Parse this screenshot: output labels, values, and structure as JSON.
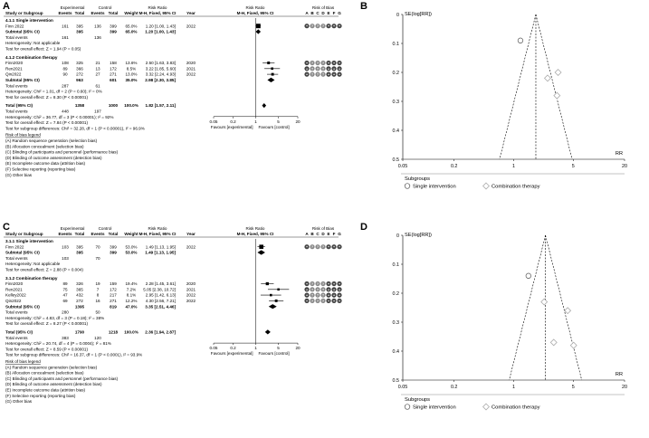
{
  "panels": {
    "A": "A",
    "B": "B",
    "C": "C",
    "D": "D"
  },
  "forest_headers": {
    "experimental": "Experimental",
    "control": "Control",
    "risk_ratio": "Risk Ratio",
    "risk_of_bias": "Risk of Bias",
    "study_or_subgroup": "Study or Subgroup",
    "events": "Events",
    "total": "Total",
    "weight": "Weight",
    "rr_method": "M-H, Fixed, 95% CI",
    "year": "Year",
    "bias_letters": [
      "A",
      "B",
      "C",
      "D",
      "E",
      "F",
      "G"
    ]
  },
  "forest_axis": {
    "ticks": [
      "0.05",
      "0.2",
      "1",
      "5",
      "20"
    ],
    "favours_left": "Favours [experimental]",
    "favours_right": "Favours [control]"
  },
  "legend": {
    "title": "Risk of bias legend",
    "items": [
      "(A) Random sequence generation (selection bias)",
      "(B) Allocation concealment (selection bias)",
      "(C) Blinding of participants and personnel (performance bias)",
      "(D) Blinding of outcome assessment (detection bias)",
      "(E) Incomplete outcome data (attrition bias)",
      "(F) Selective reporting (reporting bias)",
      "(G) Other bias"
    ]
  },
  "chart_data": [
    {
      "type": "table",
      "panel": "A",
      "subgroups": [
        {
          "title": "4.1.1 Single intervention",
          "studies": [
            {
              "name": "Finn 2022",
              "e_events": 161,
              "e_total": 395,
              "c_events": 136,
              "c_total": 399,
              "weight": "65.0%",
              "rr": 1.2,
              "lo": 1.0,
              "hi": 1.43,
              "ci_text": "1.20 [1.00, 1.43]",
              "year": "2022",
              "bias": [
                "+",
                "?",
                "?",
                "?",
                "+",
                "+",
                "+"
              ]
            }
          ],
          "subtotal": {
            "label": "Subtotal (95% CI)",
            "e_total": 395,
            "c_total": 399,
            "weight": "65.0%",
            "rr": 1.2,
            "lo": 1.0,
            "hi": 1.43,
            "ci_text": "1.20 [1.00, 1.43]"
          },
          "total_events": {
            "label": "Total events",
            "e": 161,
            "c": 136
          },
          "notes": [
            "Heterogeneity: Not applicable",
            "Test for overall effect: Z = 1.94 (P = 0.05)"
          ]
        },
        {
          "title": "4.1.2 Combination therapy",
          "studies": [
            {
              "name": "Finn2020",
              "e_events": 108,
              "e_total": 325,
              "c_events": 21,
              "c_total": 158,
              "weight": "13.6%",
              "rr": 2.5,
              "lo": 1.63,
              "hi": 3.83,
              "ci_text": "2.50 [1.63, 3.83]",
              "year": "2020",
              "bias": [
                "+",
                "?",
                "?",
                "?",
                "+",
                "+",
                "+"
              ]
            },
            {
              "name": "Ren2021",
              "e_events": 89,
              "e_total": 366,
              "c_events": 13,
              "c_total": 172,
              "weight": "8.5%",
              "rr": 3.22,
              "lo": 1.85,
              "hi": 5.6,
              "ci_text": "3.22 [1.85, 5.60]",
              "year": "2021",
              "bias": [
                "+",
                "?",
                "?",
                "?",
                "+",
                "+",
                "+"
              ]
            },
            {
              "name": "Qin2022",
              "e_events": 90,
              "e_total": 272,
              "c_events": 27,
              "c_total": 271,
              "weight": "13.0%",
              "rr": 3.32,
              "lo": 2.24,
              "hi": 4.93,
              "ci_text": "3.32 [2.24, 4.93]",
              "year": "2022",
              "bias": [
                "+",
                "?",
                "?",
                "?",
                "+",
                "+",
                "+"
              ]
            }
          ],
          "subtotal": {
            "label": "Subtotal (95% CI)",
            "e_total": 963,
            "c_total": 601,
            "weight": "35.0%",
            "rr": 2.98,
            "lo": 2.3,
            "hi": 3.85,
            "ci_text": "2.98 [2.30, 3.85]"
          },
          "total_events": {
            "label": "Total events",
            "e": 287,
            "c": 61
          },
          "notes": [
            "Heterogeneity: Chi² = 1.01, df = 2 (P = 0.60); I² = 0%",
            "Test for overall effect: Z = 8.30 (P < 0.00001)"
          ]
        }
      ],
      "total": {
        "label": "Total (95% CI)",
        "e_total": 1358,
        "c_total": 1000,
        "weight": "100.0%",
        "rr": 1.82,
        "lo": 1.57,
        "hi": 2.11,
        "ci_text": "1.82 [1.57, 2.11]"
      },
      "total_events": {
        "label": "Total events",
        "e": 448,
        "c": 197
      },
      "notes": [
        "Heterogeneity: Chi² = 36.77, df = 3 (P < 0.00001); I² = 92%",
        "Test for overall effect: Z = 7.84 (P < 0.00001)",
        "Test for subgroup differences: Chi² = 32.28, df = 1 (P < 0.00001), I² = 96.9%"
      ],
      "x_scale": "log",
      "xlim": [
        0.05,
        20
      ]
    },
    {
      "type": "scatter",
      "panel": "B",
      "ylabel": "SE(log[RR])",
      "xlabel": "RR",
      "x_scale": "log",
      "xlim": [
        0.05,
        20
      ],
      "ylim": [
        0,
        0.5
      ],
      "x_ticks": [
        "0.05",
        "0.2",
        "1",
        "5",
        "20"
      ],
      "y_ticks": [
        "0",
        "0.1",
        "0.2",
        "0.3",
        "0.4",
        "0.5"
      ],
      "pooled_rr": 1.82,
      "subgroup_title": "Subgroups",
      "series": [
        {
          "name": "Single intervention",
          "marker": "circle",
          "points": [
            {
              "x": 1.2,
              "y": 0.09
            }
          ]
        },
        {
          "name": "Combination therapy",
          "marker": "diamond",
          "points": [
            {
              "x": 2.5,
              "y": 0.22
            },
            {
              "x": 3.22,
              "y": 0.28
            },
            {
              "x": 3.32,
              "y": 0.2
            }
          ]
        }
      ]
    },
    {
      "type": "table",
      "panel": "C",
      "subgroups": [
        {
          "title": "3.1.1 Single intervention",
          "studies": [
            {
              "name": "Finn 2022",
              "e_events": 103,
              "e_total": 395,
              "c_events": 70,
              "c_total": 399,
              "weight": "53.0%",
              "rr": 1.49,
              "lo": 1.13,
              "hi": 1.95,
              "ci_text": "1.49 [1.13, 1.95]",
              "year": "2022",
              "bias": [
                "+",
                "?",
                "?",
                "?",
                "+",
                "+",
                "+"
              ]
            }
          ],
          "subtotal": {
            "label": "Subtotal (95% CI)",
            "e_total": 395,
            "c_total": 399,
            "weight": "53.0%",
            "rr": 1.49,
            "lo": 1.13,
            "hi": 1.95,
            "ci_text": "1.49 [1.13, 1.95]"
          },
          "total_events": {
            "label": "Total events",
            "e": 103,
            "c": 70
          },
          "notes": [
            "Heterogeneity: Not applicable",
            "Test for overall effect: Z = 2.88 (P = 0.004)"
          ]
        },
        {
          "title": "3.1.2 Combination therapy",
          "studies": [
            {
              "name": "Finn2020",
              "e_events": 89,
              "e_total": 326,
              "c_events": 19,
              "c_total": 159,
              "weight": "19.4%",
              "rr": 2.28,
              "lo": 1.45,
              "hi": 3.61,
              "ci_text": "2.28 [1.45, 3.61]",
              "year": "2020",
              "bias": [
                "+",
                "?",
                "?",
                "?",
                "+",
                "+",
                "+"
              ]
            },
            {
              "name": "Ren2021",
              "e_events": 75,
              "e_total": 365,
              "c_events": 7,
              "c_total": 172,
              "weight": "7.2%",
              "rr": 5.05,
              "lo": 2.38,
              "hi": 10.72,
              "ci_text": "5.05 [2.38, 10.72]",
              "year": "2021",
              "bias": [
                "+",
                "?",
                "?",
                "?",
                "+",
                "+",
                "+"
              ]
            },
            {
              "name": "Kelley2022",
              "e_events": 47,
              "e_total": 432,
              "c_events": 8,
              "c_total": 217,
              "weight": "8.1%",
              "rr": 2.95,
              "lo": 1.42,
              "hi": 6.13,
              "ci_text": "2.95 [1.42, 6.13]",
              "year": "2022",
              "bias": [
                "+",
                "?",
                "?",
                "?",
                "+",
                "+",
                "+"
              ]
            },
            {
              "name": "Qin2022",
              "e_events": 69,
              "e_total": 272,
              "c_events": 16,
              "c_total": 271,
              "weight": "12.2%",
              "rr": 4.3,
              "lo": 2.56,
              "hi": 7.21,
              "ci_text": "4.30 [2.56, 7.21]",
              "year": "2022",
              "bias": [
                "+",
                "?",
                "?",
                "?",
                "+",
                "+",
                "+"
              ]
            }
          ],
          "subtotal": {
            "label": "Subtotal (95% CI)",
            "e_total": 1395,
            "c_total": 819,
            "weight": "47.0%",
            "rr": 3.35,
            "lo": 2.51,
            "hi": 4.46,
            "ci_text": "3.35 [2.51, 4.46]"
          },
          "total_events": {
            "label": "Total events",
            "e": 280,
            "c": 50
          },
          "notes": [
            "Heterogeneity: Chi² = 4.83, df = 3 (P = 0.18); I² = 38%",
            "Test for overall effect: Z = 8.27 (P < 0.00001)"
          ]
        }
      ],
      "total": {
        "label": "Total (95% CI)",
        "e_total": 1790,
        "c_total": 1218,
        "weight": "100.0%",
        "rr": 2.36,
        "lo": 1.94,
        "hi": 2.87,
        "ci_text": "2.36 [1.94, 2.87]"
      },
      "total_events": {
        "label": "Total events",
        "e": 383,
        "c": 120
      },
      "notes": [
        "Heterogeneity: Chi² = 20.74, df = 4 (P = 0.0004); I² = 81%",
        "Test for overall effect: Z = 8.59 (P < 0.00001)",
        "Test for subgroup differences: Chi² = 16.37, df = 1 (P < 0.0001), I² = 93.9%"
      ],
      "x_scale": "log",
      "xlim": [
        0.05,
        20
      ]
    },
    {
      "type": "scatter",
      "panel": "D",
      "ylabel": "SE(log[RR])",
      "xlabel": "RR",
      "x_scale": "log",
      "xlim": [
        0.05,
        20
      ],
      "ylim": [
        0,
        0.5
      ],
      "x_ticks": [
        "0.05",
        "0.2",
        "1",
        "5",
        "20"
      ],
      "y_ticks": [
        "0",
        "0.1",
        "0.2",
        "0.3",
        "0.4",
        "0.5"
      ],
      "pooled_rr": 2.36,
      "subgroup_title": "Subgroups",
      "series": [
        {
          "name": "Single intervention",
          "marker": "circle",
          "points": [
            {
              "x": 1.49,
              "y": 0.14
            }
          ]
        },
        {
          "name": "Combination therapy",
          "marker": "diamond",
          "points": [
            {
              "x": 2.28,
              "y": 0.23
            },
            {
              "x": 5.05,
              "y": 0.38
            },
            {
              "x": 2.95,
              "y": 0.37
            },
            {
              "x": 4.3,
              "y": 0.26
            }
          ]
        }
      ]
    }
  ]
}
